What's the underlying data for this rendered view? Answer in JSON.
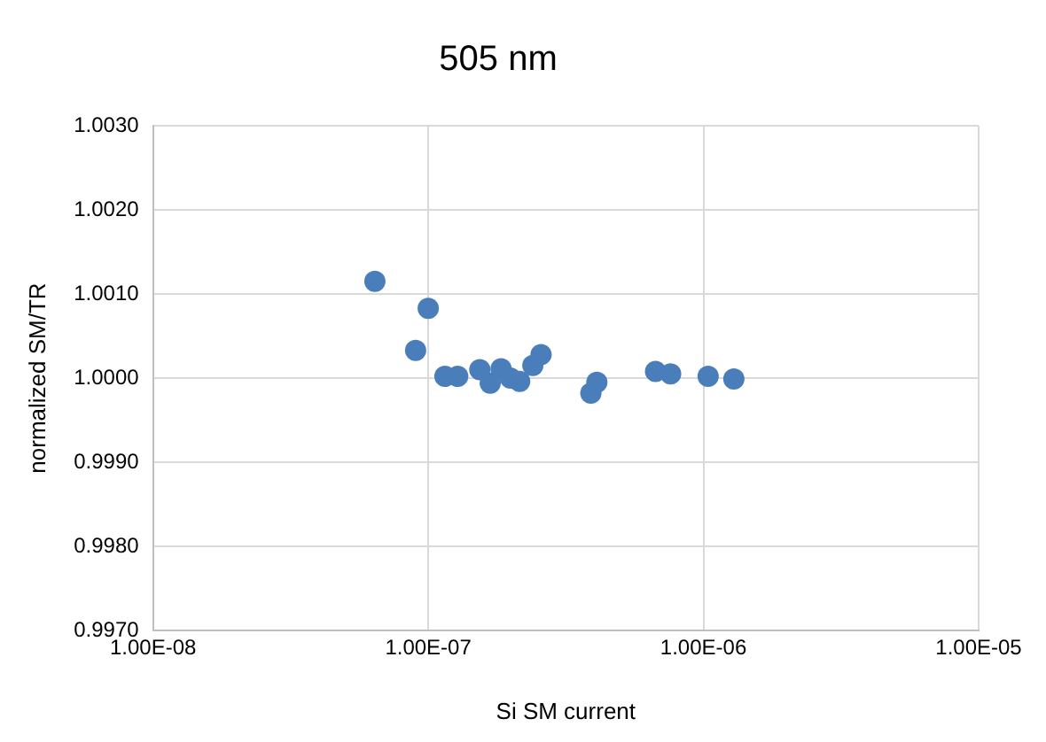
{
  "chart_data": {
    "type": "scatter",
    "title": "505 nm",
    "xlabel": "Si SM current",
    "ylabel": "normalized SM/TR",
    "x": [
      6.4e-08,
      1e-07,
      9e-08,
      1.15e-07,
      1.28e-07,
      1.54e-07,
      1.68e-07,
      1.84e-07,
      1.99e-07,
      2.15e-07,
      2.26e-07,
      2.4e-07,
      2.57e-07,
      3.9e-07,
      4.1e-07,
      6.7e-07,
      7.6e-07,
      1.04e-06,
      1.29e-06
    ],
    "series": [
      {
        "color": "#4a7ebb",
        "values": [
          1.00115,
          1.00083,
          1.00033,
          1.00002,
          1.00002,
          1.0001,
          0.99994,
          1.00011,
          1.0,
          0.99996,
          null,
          1.00015,
          1.00028,
          0.99982,
          0.99995,
          1.00008,
          1.00005,
          1.00002,
          0.99999
        ]
      }
    ],
    "log": "x",
    "xlim": [
      1e-08,
      1e-05
    ],
    "xticks": [
      {
        "value": 1e-08,
        "label": "1.00E-08"
      },
      {
        "value": 1e-07,
        "label": "1.00E-07"
      },
      {
        "value": 1e-06,
        "label": "1.00E-06"
      },
      {
        "value": 1e-05,
        "label": "1.00E-05"
      }
    ],
    "ylim": [
      0.997,
      1.003
    ],
    "yticks": [
      {
        "value": 0.997,
        "label": "0.9970"
      },
      {
        "value": 0.998,
        "label": "0.9980"
      },
      {
        "value": 0.999,
        "label": "0.9990"
      },
      {
        "value": 1.0,
        "label": "1.0000"
      },
      {
        "value": 1.001,
        "label": "1.0010"
      },
      {
        "value": 1.002,
        "label": "1.0020"
      },
      {
        "value": 1.003,
        "label": "1.0030"
      }
    ],
    "grid": true,
    "legend": false,
    "marker": "circle"
  }
}
